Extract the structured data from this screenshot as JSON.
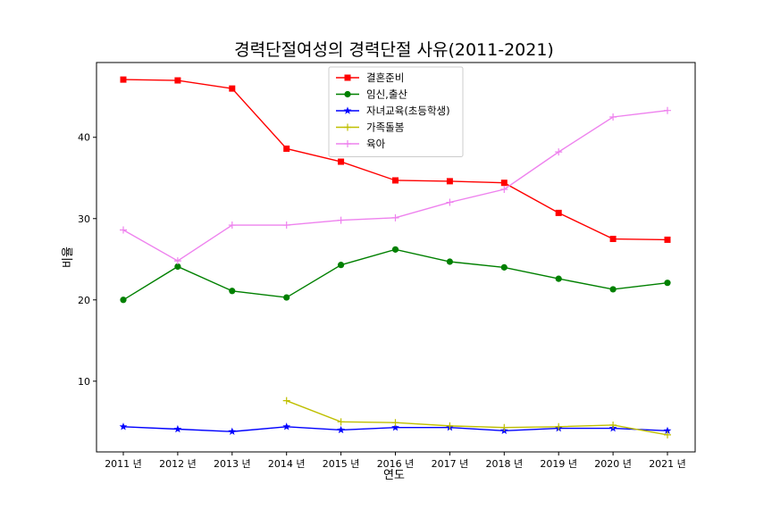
{
  "chart_data": {
    "type": "line",
    "title": "경력단절여성의 경력단절 사유(2011-2021)",
    "xlabel": "연도",
    "ylabel": "비율",
    "x": [
      "2011 년",
      "2012 년",
      "2013 년",
      "2014 년",
      "2015 년",
      "2016 년",
      "2017 년",
      "2018 년",
      "2019 년",
      "2020 년",
      "2021 년"
    ],
    "ylim": [
      1.3,
      49.2
    ],
    "yticks": [
      10,
      20,
      30,
      40
    ],
    "grid": false,
    "legend": "upper-center",
    "series": [
      {
        "name": "결혼준비",
        "color": "#ff0000",
        "marker": "square",
        "values": [
          47.1,
          47.0,
          46.0,
          38.6,
          37.0,
          34.7,
          34.6,
          34.4,
          30.7,
          27.5,
          27.4
        ]
      },
      {
        "name": "임신,출산",
        "color": "#008000",
        "marker": "circle",
        "values": [
          20.0,
          24.1,
          21.1,
          20.3,
          24.3,
          26.2,
          24.7,
          24.0,
          22.6,
          21.3,
          22.1
        ]
      },
      {
        "name": "자녀교육(초등학생)",
        "color": "#0000ff",
        "marker": "star",
        "values": [
          4.4,
          4.1,
          3.8,
          4.4,
          4.0,
          4.3,
          4.3,
          3.9,
          4.2,
          4.2,
          3.9
        ]
      },
      {
        "name": "가족돌봄",
        "color": "#bfbf00",
        "marker": "plus",
        "values": [
          null,
          null,
          null,
          7.6,
          5.0,
          4.9,
          4.5,
          4.3,
          4.4,
          4.6,
          3.4
        ]
      },
      {
        "name": "육아",
        "color": "#ee82ee",
        "marker": "plus",
        "values": [
          28.6,
          24.8,
          29.2,
          29.2,
          29.8,
          30.1,
          32.0,
          33.6,
          38.2,
          42.5,
          43.3
        ]
      }
    ]
  }
}
